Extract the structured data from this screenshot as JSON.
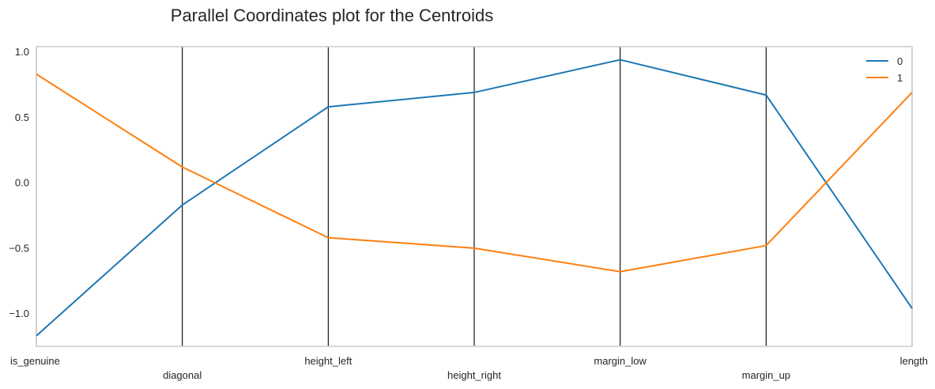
{
  "chart_data": {
    "type": "line",
    "subtype": "parallel-coordinates",
    "title": "Parallel Coordinates plot for the Centroids",
    "categories": [
      "is_genuine",
      "diagonal",
      "height_left",
      "height_right",
      "margin_low",
      "margin_up",
      "length"
    ],
    "series": [
      {
        "name": "0",
        "color": "#1f77b4",
        "values": [
          -1.17,
          -0.17,
          0.58,
          0.69,
          0.94,
          0.67,
          -0.96
        ]
      },
      {
        "name": "1",
        "color": "#ff7f0e",
        "values": [
          0.83,
          0.12,
          -0.42,
          -0.5,
          -0.68,
          -0.48,
          0.69
        ]
      }
    ],
    "ylim": [
      -1.25,
      1.04
    ],
    "yticks": [
      "1.0",
      "0.5",
      "0.0",
      "−0.5",
      "−1.0"
    ],
    "ytick_values": [
      1.0,
      0.5,
      0.0,
      -0.5,
      -1.0
    ],
    "grid": false,
    "legend": "top-right",
    "axis_line_color": "#000000",
    "frame_color": "#cccccc"
  }
}
